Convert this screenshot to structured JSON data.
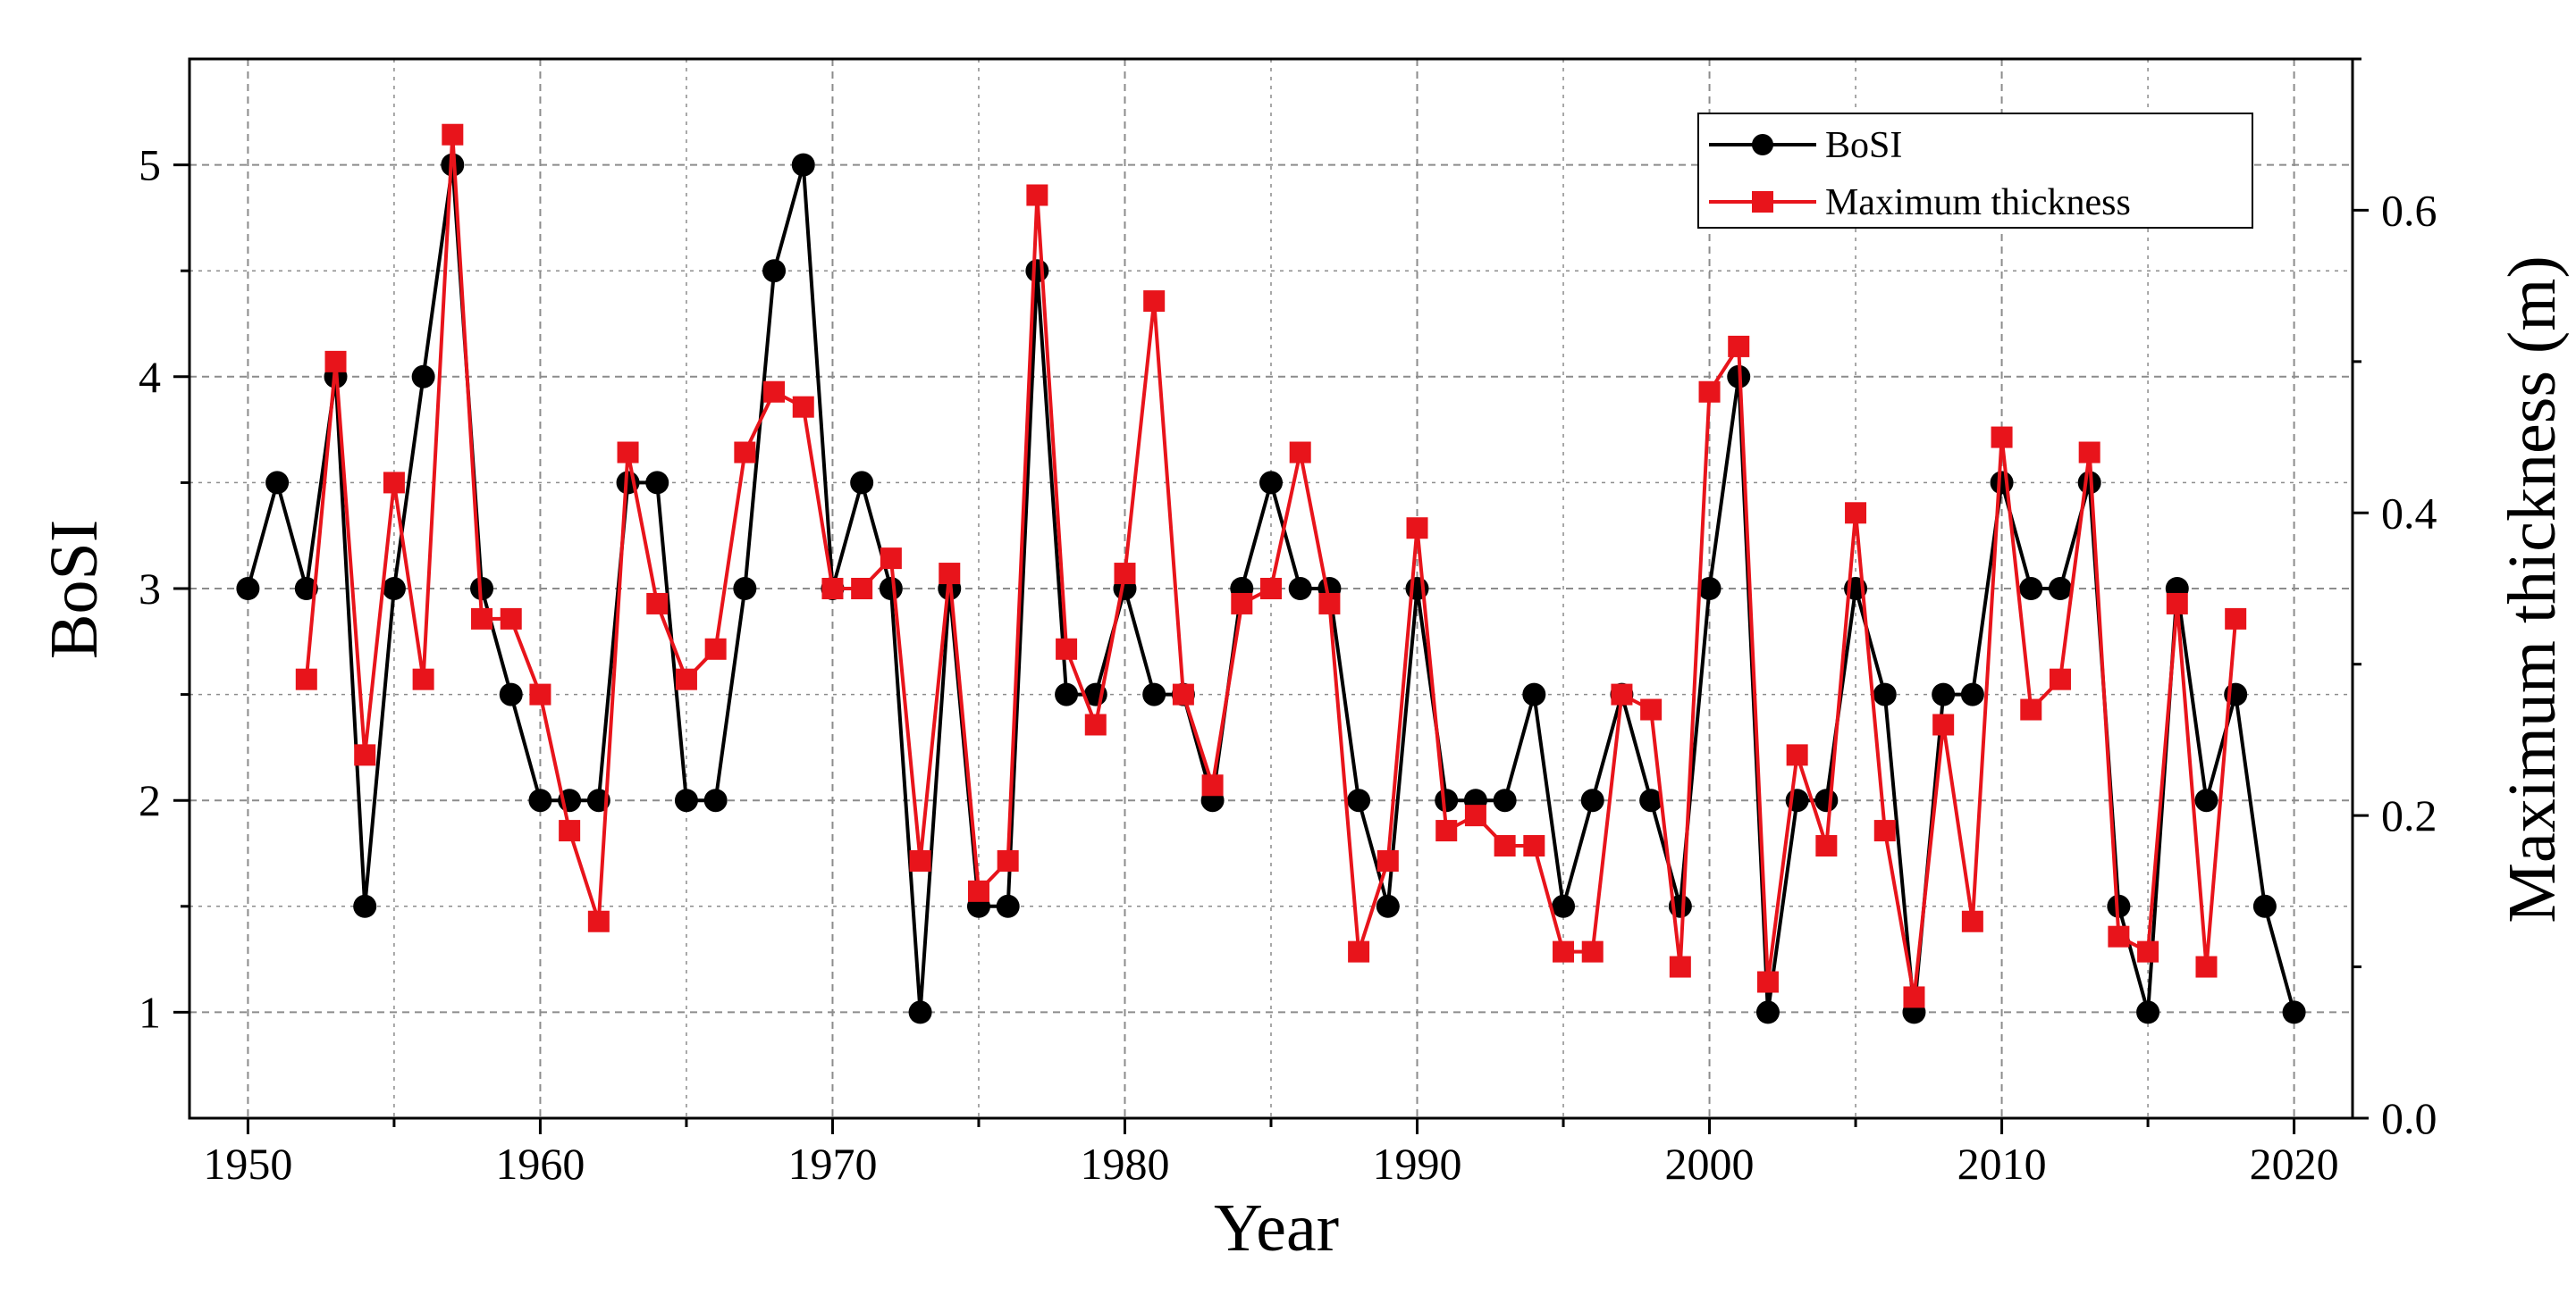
{
  "chart_data": {
    "type": "line",
    "title": "",
    "xlabel": "Year",
    "ylabel": "BoSI",
    "y2label": "Maximum thickness (m)",
    "xlim": [
      1948,
      2022
    ],
    "ylim": [
      0.5,
      5.5
    ],
    "y2lim": [
      0.0,
      0.7
    ],
    "xticks": [
      1950,
      1960,
      1970,
      1980,
      1990,
      2000,
      2010,
      2020
    ],
    "yticks": [
      1,
      2,
      3,
      4,
      5
    ],
    "y2ticks": [
      0.0,
      0.2,
      0.4,
      0.6
    ],
    "y2tick_labels": [
      "0.0",
      "0.2",
      "0.4",
      "0.6"
    ],
    "grid": true,
    "legend_position": "top-right",
    "colors": {
      "bosi": "#000000",
      "thickness": "#e8141b",
      "grid": "#8c8c8c"
    },
    "series": [
      {
        "name": "BoSI",
        "axis": "left",
        "marker": "circle",
        "x": [
          1950,
          1951,
          1952,
          1953,
          1954,
          1955,
          1956,
          1957,
          1958,
          1959,
          1960,
          1961,
          1962,
          1963,
          1964,
          1965,
          1966,
          1967,
          1968,
          1969,
          1970,
          1971,
          1972,
          1973,
          1974,
          1975,
          1976,
          1977,
          1978,
          1979,
          1980,
          1981,
          1982,
          1983,
          1984,
          1985,
          1986,
          1987,
          1988,
          1989,
          1990,
          1991,
          1992,
          1993,
          1994,
          1995,
          1996,
          1997,
          1998,
          1999,
          2000,
          2001,
          2002,
          2003,
          2004,
          2005,
          2006,
          2007,
          2008,
          2009,
          2010,
          2011,
          2012,
          2013,
          2014,
          2015,
          2016,
          2017,
          2018,
          2019,
          2020
        ],
        "values": [
          3,
          3.5,
          3,
          4,
          1.5,
          3,
          4,
          5,
          3,
          2.5,
          2,
          2,
          2,
          3.5,
          3.5,
          2,
          2,
          3,
          4.5,
          5,
          3,
          3.5,
          3,
          1,
          3,
          1.5,
          1.5,
          4.5,
          2.5,
          2.5,
          3,
          2.5,
          2.5,
          2,
          3,
          3.5,
          3,
          3,
          2,
          1.5,
          3,
          2,
          2,
          2,
          2.5,
          1.5,
          2,
          2.5,
          2,
          1.5,
          3,
          4,
          1,
          2,
          2,
          3,
          2.5,
          1,
          2.5,
          2.5,
          3.5,
          3,
          3,
          3.5,
          1.5,
          1,
          3,
          2,
          2.5,
          1.5,
          1
        ]
      },
      {
        "name": "Maximum thickness",
        "axis": "right",
        "marker": "square",
        "x": [
          1952,
          1953,
          1954,
          1955,
          1956,
          1957,
          1958,
          1959,
          1960,
          1961,
          1962,
          1963,
          1964,
          1965,
          1966,
          1967,
          1968,
          1969,
          1970,
          1971,
          1972,
          1973,
          1974,
          1975,
          1976,
          1977,
          1978,
          1979,
          1980,
          1981,
          1982,
          1983,
          1984,
          1985,
          1986,
          1987,
          1988,
          1989,
          1990,
          1991,
          1992,
          1993,
          1994,
          1995,
          1996,
          1997,
          1998,
          1999,
          2000,
          2001,
          2002,
          2003,
          2004,
          2005,
          2006,
          2007,
          2008,
          2009,
          2010,
          2011,
          2012,
          2013,
          2014,
          2015,
          2016,
          2017,
          2018
        ],
        "values": [
          0.29,
          0.5,
          0.24,
          0.42,
          0.29,
          0.65,
          0.33,
          0.33,
          0.28,
          0.19,
          0.13,
          0.44,
          0.34,
          0.29,
          0.31,
          0.44,
          0.48,
          0.47,
          0.35,
          0.35,
          0.37,
          0.17,
          0.36,
          0.15,
          0.17,
          0.61,
          0.31,
          0.26,
          0.36,
          0.54,
          0.28,
          0.22,
          0.34,
          0.35,
          0.44,
          0.34,
          0.11,
          0.17,
          0.39,
          0.19,
          0.2,
          0.18,
          0.18,
          0.11,
          0.11,
          0.28,
          0.27,
          0.1,
          0.48,
          0.51,
          0.09,
          0.24,
          0.18,
          0.4,
          0.19,
          0.08,
          0.26,
          0.13,
          0.45,
          0.27,
          0.29,
          0.44,
          0.12,
          0.11,
          0.34,
          0.1,
          0.33
        ]
      }
    ]
  }
}
